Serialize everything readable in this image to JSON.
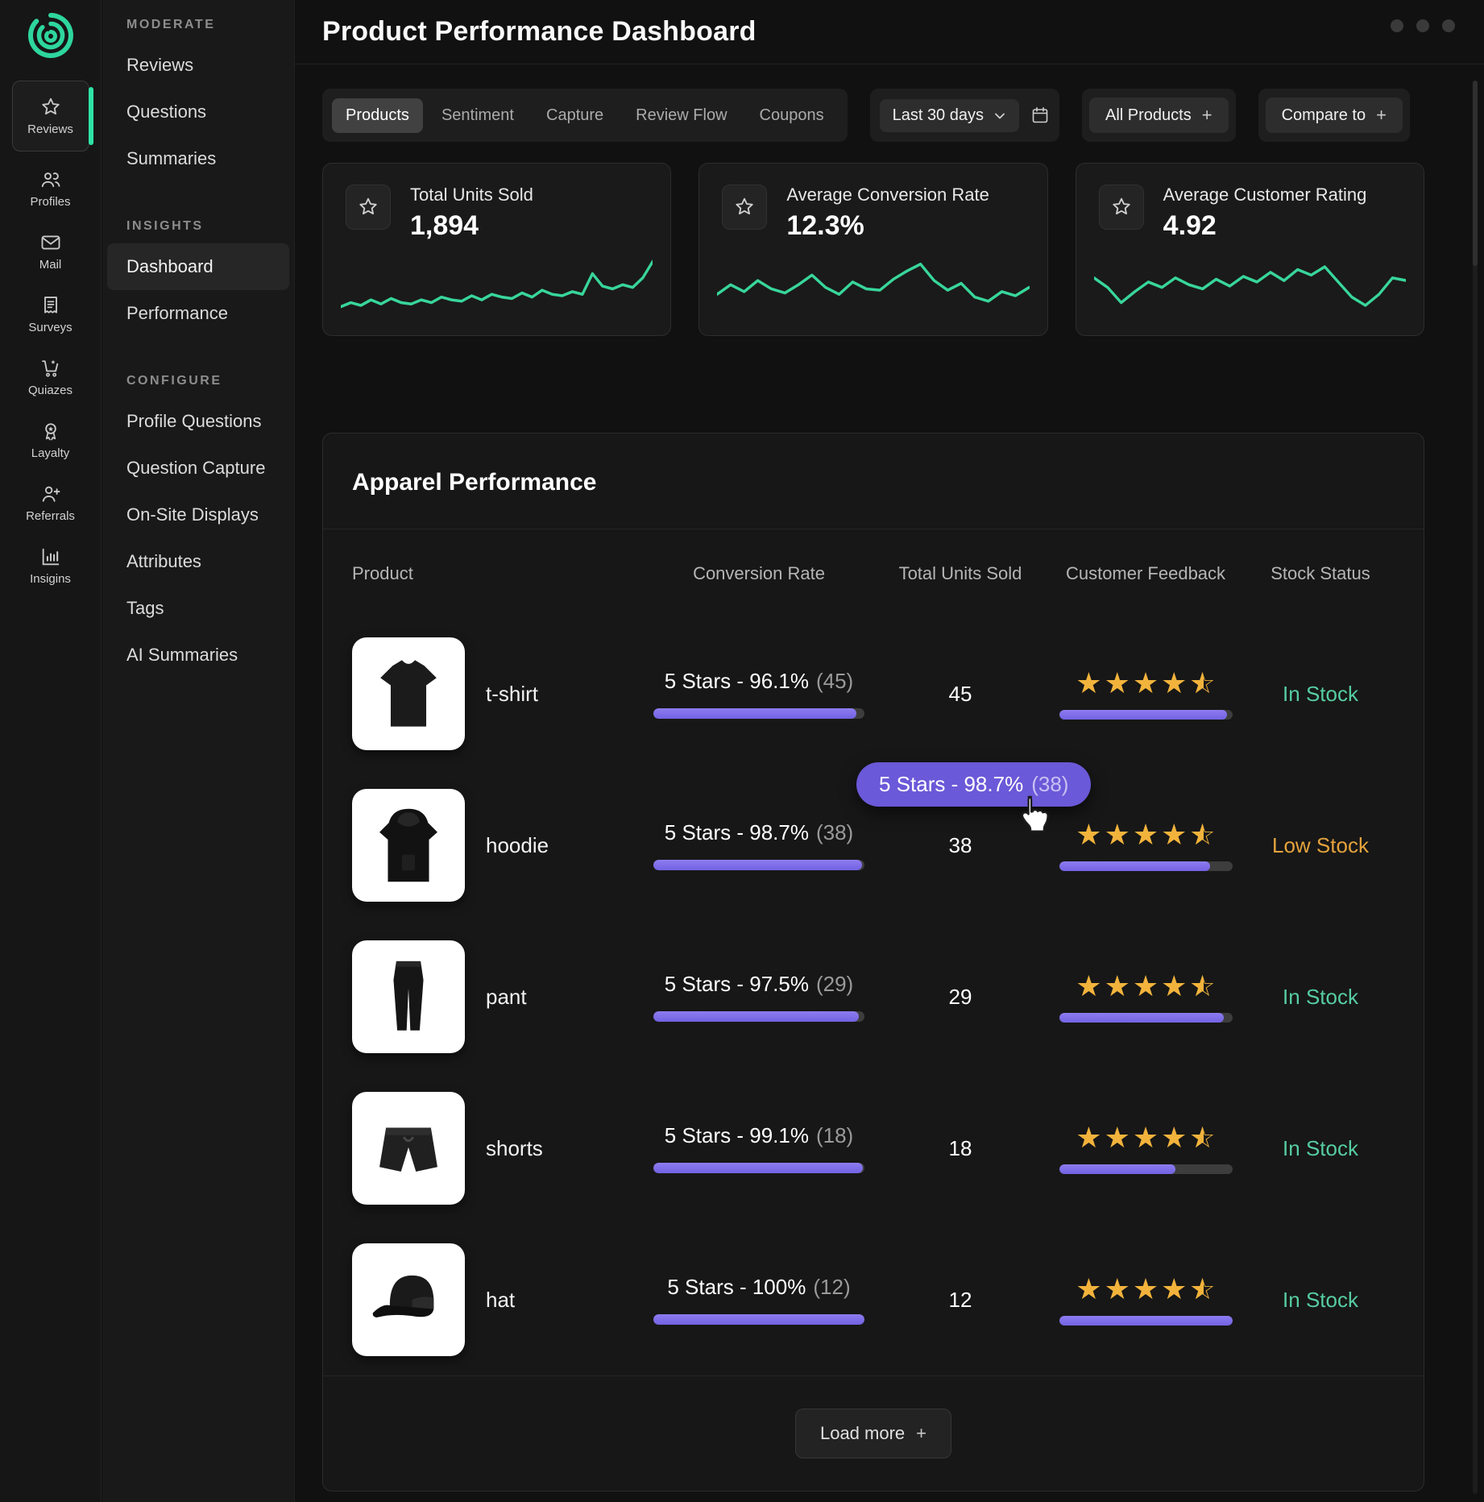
{
  "app": {
    "title": "Product Performance Dashboard"
  },
  "colors": {
    "accent_purple": "#7d6bea",
    "accent_green": "#38d69b",
    "star_gold": "#f2b33c",
    "in_stock_green": "#56cda2",
    "low_stock_orange": "#e4a33c",
    "tooltip_purple": "#6a59d8"
  },
  "rail": {
    "items": [
      {
        "label": "Reviews",
        "icon": "star-icon",
        "active": true
      },
      {
        "label": "Profiles",
        "icon": "people-icon",
        "active": false
      },
      {
        "label": "Mail",
        "icon": "mail-icon",
        "active": false
      },
      {
        "label": "Surveys",
        "icon": "survey-icon",
        "active": false
      },
      {
        "label": "Quiazes",
        "icon": "cart-icon",
        "active": false
      },
      {
        "label": "Layalty",
        "icon": "medal-icon",
        "active": false
      },
      {
        "label": "Referrals",
        "icon": "person-add-icon",
        "active": false
      },
      {
        "label": "Insigins",
        "icon": "bar-chart-icon",
        "active": false
      }
    ]
  },
  "nav": {
    "sections": [
      {
        "heading": "MODERATE",
        "items": [
          {
            "label": "Reviews"
          },
          {
            "label": "Questions"
          },
          {
            "label": "Summaries"
          }
        ]
      },
      {
        "heading": "INSIGHTS",
        "items": [
          {
            "label": "Dashboard",
            "active": true
          },
          {
            "label": "Performance"
          }
        ]
      },
      {
        "heading": "CONFIGURE",
        "items": [
          {
            "label": "Profile Questions"
          },
          {
            "label": "Question Capture"
          },
          {
            "label": "On-Site Displays"
          },
          {
            "label": "Attributes"
          },
          {
            "label": "Tags"
          },
          {
            "label": "AI Summaries"
          }
        ]
      }
    ]
  },
  "toolbar": {
    "tabs": [
      {
        "label": "Products",
        "active": true
      },
      {
        "label": "Sentiment",
        "active": false
      },
      {
        "label": "Capture",
        "active": false
      },
      {
        "label": "Review Flow",
        "active": false
      },
      {
        "label": "Coupons",
        "active": false
      }
    ],
    "date_range": "Last 30 days",
    "all_products_label": "All Products",
    "compare_to_label": "Compare to"
  },
  "stats": [
    {
      "label": "Total Units Sold",
      "value": "1,894",
      "spark": [
        20,
        26,
        22,
        30,
        24,
        32,
        26,
        24,
        30,
        26,
        34,
        30,
        28,
        36,
        30,
        38,
        34,
        32,
        40,
        34,
        44,
        38,
        36,
        42,
        38,
        68,
        50,
        46,
        52,
        48,
        62,
        86
      ]
    },
    {
      "label": "Average Conversion Rate",
      "value": "12.3%",
      "spark": [
        38,
        52,
        42,
        58,
        46,
        40,
        52,
        66,
        48,
        38,
        56,
        46,
        44,
        60,
        72,
        82,
        58,
        44,
        54,
        34,
        28,
        42,
        36,
        48
      ]
    },
    {
      "label": "Average Customer Rating",
      "value": "4.92",
      "spark": [
        62,
        48,
        26,
        42,
        56,
        48,
        62,
        52,
        46,
        60,
        50,
        64,
        56,
        70,
        58,
        74,
        66,
        78,
        56,
        34,
        22,
        38,
        62,
        58
      ]
    }
  ],
  "table": {
    "title": "Apparel Performance",
    "columns": [
      "Product",
      "Conversion Rate",
      "Total Units Sold",
      "Customer Feedback",
      "Stock Status"
    ],
    "rows": [
      {
        "product": "t-shirt",
        "art": "tshirt",
        "conversion_text": "5 Stars - 96.1%",
        "conversion_count": "(45)",
        "conversion_pct": 96.1,
        "units": "45",
        "rating": 4.5,
        "feedback_pct": 97,
        "stock": "In Stock",
        "stock_state": "in"
      },
      {
        "product": "hoodie",
        "art": "hoodie",
        "conversion_text": "5 Stars - 98.7%",
        "conversion_count": "(38)",
        "conversion_pct": 98.7,
        "units": "38",
        "rating": 4.5,
        "feedback_pct": 87,
        "stock": "Low Stock",
        "stock_state": "low"
      },
      {
        "product": "pant",
        "art": "pant",
        "conversion_text": "5 Stars - 97.5%",
        "conversion_count": "(29)",
        "conversion_pct": 97.5,
        "units": "29",
        "rating": 4.5,
        "feedback_pct": 95,
        "stock": "In Stock",
        "stock_state": "in"
      },
      {
        "product": "shorts",
        "art": "shorts",
        "conversion_text": "5 Stars - 99.1%",
        "conversion_count": "(18)",
        "conversion_pct": 99.1,
        "units": "18",
        "rating": 4.5,
        "feedback_pct": 67,
        "stock": "In Stock",
        "stock_state": "in"
      },
      {
        "product": "hat",
        "art": "hat",
        "conversion_text": "5 Stars - 100%",
        "conversion_count": "(12)",
        "conversion_pct": 100,
        "units": "12",
        "rating": 4.5,
        "feedback_pct": 100,
        "stock": "In Stock",
        "stock_state": "in"
      }
    ],
    "tooltip": {
      "text": "5 Stars - 98.7%",
      "count": "(38)"
    },
    "load_more_label": "Load more"
  }
}
